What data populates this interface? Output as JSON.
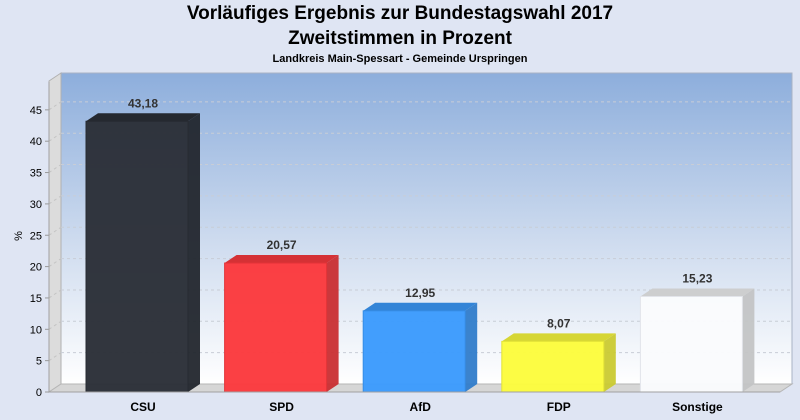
{
  "header": {
    "title_line1": "Vorläufiges Ergebnis zur Bundestagswahl 2017",
    "title_line2": "Zweitstimmen in Prozent",
    "subtitle": "Landkreis Main-Spessart - Gemeinde Urspringen"
  },
  "chart_data": {
    "type": "bar",
    "title": "Vorläufiges Ergebnis zur Bundestagswahl 2017 – Zweitstimmen in Prozent",
    "subtitle": "Landkreis Main-Spessart - Gemeinde Urspringen",
    "xlabel": "",
    "ylabel": "%",
    "ylim": [
      0,
      50
    ],
    "yticks": [
      0,
      5,
      10,
      15,
      20,
      25,
      30,
      35,
      40,
      45
    ],
    "grid": true,
    "style": "3d",
    "categories": [
      "CSU",
      "SPD",
      "AfD",
      "FDP",
      "Sonstige"
    ],
    "values": [
      43.18,
      20.57,
      12.95,
      8.07,
      15.23
    ],
    "value_labels": [
      "43,18",
      "20,57",
      "12,95",
      "8,07",
      "15,23"
    ],
    "colors": [
      "#2b3038",
      "#fb3a3e",
      "#3c9bfd",
      "#fcfc3e",
      "#fafbfd"
    ]
  }
}
